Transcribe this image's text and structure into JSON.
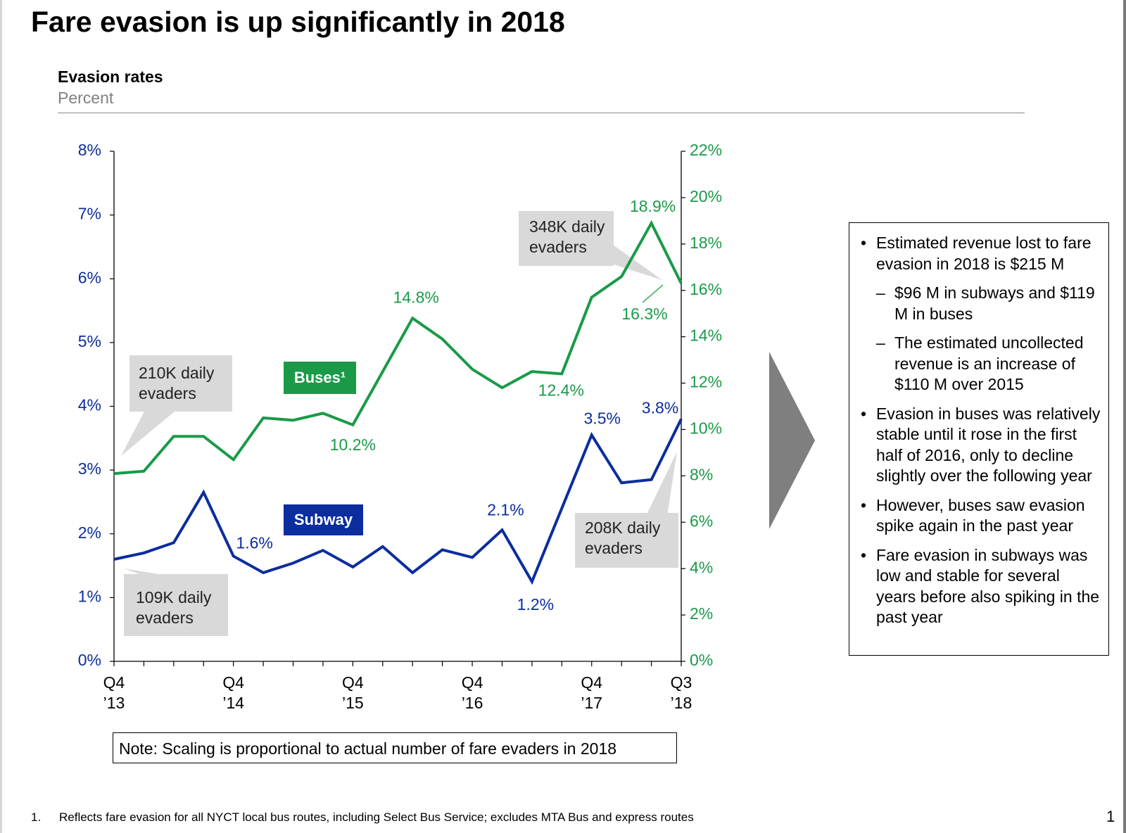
{
  "slide": {
    "title": "Fare evasion is up significantly in 2018",
    "chart_subtitle": "Evasion rates",
    "chart_unit": "Percent",
    "note": "Note: Scaling is proportional to actual number of fare evaders in 2018",
    "footnote_number": "1.",
    "footnote_text": "Reflects fare evasion for all NYCT local bus routes, including Select Bus Service; excludes MTA Bus and express routes",
    "page_number": "1",
    "summary": [
      {
        "level": 1,
        "marker": "•",
        "text": "Estimated revenue lost to fare evasion in 2018 is $215 M"
      },
      {
        "level": 2,
        "marker": "–",
        "text": "$96 M in subways and $119 M in buses"
      },
      {
        "level": 2,
        "marker": "–",
        "text": "The estimated uncollected revenue is an increase of $110 M over 2015"
      },
      {
        "level": 1,
        "marker": "•",
        "text": "Evasion in buses was relatively stable until it rose in the first half of 2016, only to decline slightly over the following year"
      },
      {
        "level": 1,
        "marker": "•",
        "text": "However, buses saw evasion spike again in the past year"
      },
      {
        "level": 1,
        "marker": "•",
        "text": "Fare evasion in subways was low and stable for several years before also spiking in the past year"
      }
    ]
  },
  "chart_data": {
    "type": "line",
    "x_tick_labels": [
      {
        "index": 0,
        "line1": "Q4",
        "line2": "’13"
      },
      {
        "index": 4,
        "line1": "Q4",
        "line2": "’14"
      },
      {
        "index": 8,
        "line1": "Q4",
        "line2": "’15"
      },
      {
        "index": 12,
        "line1": "Q4",
        "line2": "’16"
      },
      {
        "index": 16,
        "line1": "Q4",
        "line2": "’17"
      },
      {
        "index": 19,
        "line1": "Q3",
        "line2": "’18"
      }
    ],
    "y_left": {
      "ylim": [
        0,
        8
      ],
      "ticks": [
        "0%",
        "1%",
        "2%",
        "3%",
        "4%",
        "5%",
        "6%",
        "7%",
        "8%"
      ]
    },
    "y_right": {
      "ylim": [
        0,
        22
      ],
      "ticks": [
        "0%",
        "2%",
        "4%",
        "6%",
        "8%",
        "10%",
        "12%",
        "14%",
        "16%",
        "18%",
        "20%",
        "22%"
      ]
    },
    "grid": false,
    "series": [
      {
        "name": "Buses¹",
        "axis": "right",
        "color": "#1a9a48",
        "values": [
          8.1,
          8.2,
          9.7,
          9.7,
          8.7,
          10.5,
          10.4,
          10.7,
          10.2,
          12.5,
          14.8,
          13.9,
          12.6,
          11.8,
          12.5,
          12.4,
          15.7,
          16.6,
          18.9,
          16.3
        ],
        "data_labels": [
          {
            "index": 8,
            "text": "10.2%"
          },
          {
            "index": 10,
            "text": "14.8%"
          },
          {
            "index": 15,
            "text": "12.4%"
          },
          {
            "index": 18,
            "text": "18.9%"
          },
          {
            "index": 19,
            "text": "16.3%"
          }
        ]
      },
      {
        "name": "Subway",
        "axis": "left",
        "color": "#0b2d9e",
        "values": [
          1.6,
          1.7,
          1.86,
          2.65,
          1.65,
          1.39,
          1.54,
          1.74,
          1.48,
          1.8,
          1.39,
          1.75,
          1.63,
          2.06,
          1.25,
          2.4,
          3.55,
          2.8,
          2.85,
          3.8
        ],
        "data_labels": [
          {
            "index": 4,
            "text": "1.6%"
          },
          {
            "index": 13,
            "text": "2.1%"
          },
          {
            "index": 14,
            "text": "1.2%"
          },
          {
            "index": 16,
            "text": "3.5%"
          },
          {
            "index": 19,
            "text": "3.8%"
          }
        ]
      }
    ],
    "callouts": [
      {
        "series": "Buses¹",
        "index": 0,
        "lines": [
          "210K daily",
          "evaders"
        ]
      },
      {
        "series": "Subway",
        "index": 0,
        "lines": [
          "109K daily",
          "evaders"
        ]
      },
      {
        "series": "Buses¹",
        "index": 19,
        "lines": [
          "348K daily",
          "evaders"
        ]
      },
      {
        "series": "Subway",
        "index": 19,
        "lines": [
          "208K daily",
          "evaders"
        ]
      }
    ]
  }
}
